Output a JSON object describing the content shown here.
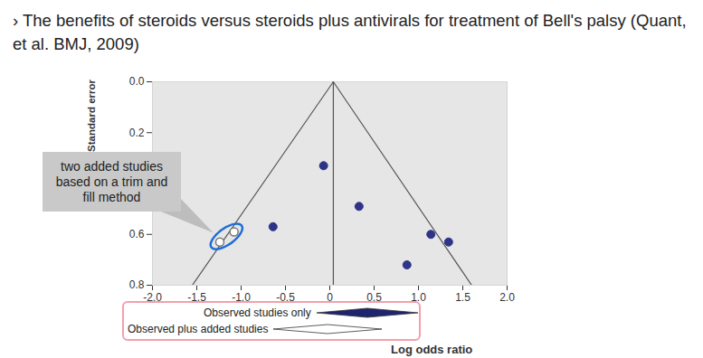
{
  "chart_data": {
    "type": "scatter",
    "title": "› The benefits of steroids versus steroids plus antivirals for treatment of Bell's palsy (Quant, et al. BMJ, 2009)",
    "x_label": "Log odds ratio",
    "y_label": "Standard error",
    "xlim": [
      -2.0,
      2.0
    ],
    "ylim": [
      0.8,
      0.0
    ],
    "xticks": [
      {
        "value": -2,
        "label": "-2.0"
      },
      -1.5,
      {
        "value": -1,
        "label": "-1.0"
      },
      -0.5,
      0,
      0.5,
      {
        "value": 1,
        "label": "1.0"
      },
      1.5,
      {
        "value": 2,
        "label": "2.0"
      }
    ],
    "yticks": [
      {
        "value": 0,
        "label": "0.0"
      },
      0.2,
      0.6,
      0.8
    ],
    "grid": false,
    "observed_studies": {
      "color": "#2e3487",
      "marker": "circle",
      "x": [
        -0.07,
        0.33,
        -0.64,
        1.14,
        1.34,
        0.87
      ],
      "y": [
        0.33,
        0.49,
        0.57,
        0.6,
        0.63,
        0.72
      ]
    },
    "added_studies": {
      "color": "#777777",
      "marker": "open circle",
      "x": [
        -1.24,
        -1.08
      ],
      "y": [
        0.63,
        0.59
      ]
    },
    "funnel_lines": [
      {
        "x": [
          0.04,
          -1.55
        ],
        "y": [
          0.0,
          0.8
        ],
        "color": "#555555"
      },
      {
        "x": [
          0.04,
          1.6
        ],
        "y": [
          0.0,
          0.8
        ],
        "color": "#555555"
      }
    ],
    "center_line": {
      "x": [
        0.04,
        0.04
      ],
      "y": [
        0.0,
        0.8
      ],
      "color": "#555555"
    },
    "annotation": "two added studies based on a trim and fill method",
    "pooled_estimates": [
      {
        "name": "Observed studies only",
        "color": "#1f2470",
        "marker": "diamond"
      },
      {
        "name": "Observed plus added studies",
        "color": "#ffffff",
        "marker": "diamond"
      }
    ]
  }
}
